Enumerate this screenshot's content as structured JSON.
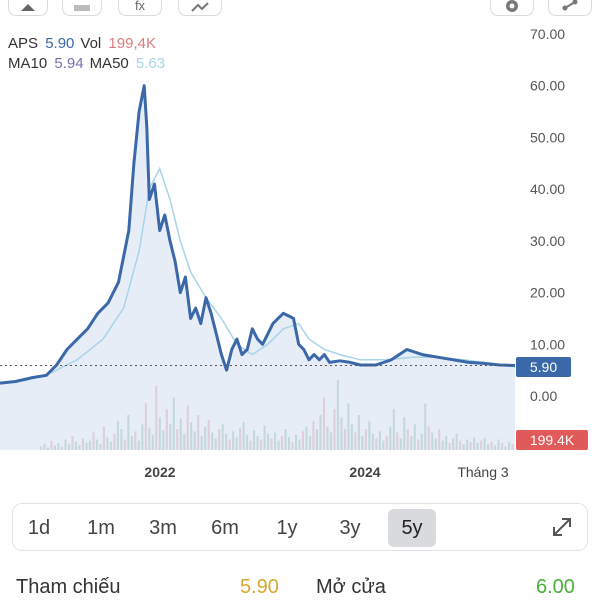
{
  "toolbar": {
    "fx_label": "fx"
  },
  "legend": {
    "symbol": "APS",
    "price": "5.90",
    "vol_label": "Vol",
    "vol": "199,4K",
    "ma10_label": "MA10",
    "ma10": "5.94",
    "ma50_label": "MA50",
    "ma50": "5.63"
  },
  "colors": {
    "price_line": "#3a68a8",
    "price_fill": "#dbe6f4",
    "ma10": "#7b6fb3",
    "ma50": "#a8d4ea",
    "volume_up": "#6fa58d",
    "volume_down": "#e07b7b",
    "price_tag": "#3a68a8",
    "vol_tag": "#e05a5a",
    "open_value": "#4caf3a",
    "ref_value": "#d6a92c"
  },
  "chart_data": {
    "type": "line",
    "x_ticks": [
      "2022",
      "2024",
      "Tháng 3"
    ],
    "y_ticks": [
      "70.00",
      "60.00",
      "50.00",
      "40.00",
      "30.00",
      "20.00",
      "10.00",
      "0.00"
    ],
    "ylim": [
      0,
      70
    ],
    "last_price": "5.90",
    "last_volume": "199.4K",
    "series": [
      {
        "name": "APS",
        "x": [
          0,
          0.03,
          0.06,
          0.09,
          0.11,
          0.13,
          0.15,
          0.17,
          0.19,
          0.21,
          0.23,
          0.25,
          0.26,
          0.27,
          0.28,
          0.285,
          0.29,
          0.3,
          0.31,
          0.32,
          0.33,
          0.34,
          0.35,
          0.36,
          0.37,
          0.38,
          0.39,
          0.4,
          0.41,
          0.42,
          0.43,
          0.44,
          0.45,
          0.46,
          0.47,
          0.48,
          0.49,
          0.5,
          0.51,
          0.52,
          0.53,
          0.55,
          0.57,
          0.58,
          0.59,
          0.6,
          0.61,
          0.62,
          0.63,
          0.64,
          0.66,
          0.68,
          0.7,
          0.73,
          0.76,
          0.79,
          0.82,
          0.85,
          0.88,
          0.91,
          0.94,
          0.97,
          1.0
        ],
        "y": [
          2.5,
          2.8,
          3.5,
          4,
          6,
          9,
          11,
          13,
          16,
          18,
          22,
          32,
          45,
          55,
          60,
          52,
          38,
          41,
          32,
          35,
          30,
          26,
          20,
          23,
          15,
          17,
          14,
          19,
          16,
          12,
          8,
          5,
          9,
          11,
          8,
          9,
          13,
          11,
          10,
          12,
          14,
          16,
          15,
          10,
          9,
          7,
          8,
          7,
          8,
          6.5,
          6.8,
          6.5,
          6,
          6,
          7,
          9,
          8,
          7.5,
          7,
          6.5,
          6.3,
          6,
          5.9
        ]
      },
      {
        "name": "MA50",
        "x": [
          0,
          0.05,
          0.1,
          0.15,
          0.2,
          0.24,
          0.27,
          0.29,
          0.31,
          0.33,
          0.35,
          0.37,
          0.4,
          0.43,
          0.46,
          0.49,
          0.52,
          0.55,
          0.58,
          0.6,
          0.63,
          0.66,
          0.7,
          0.75,
          0.8,
          0.85,
          0.9,
          0.95,
          1.0
        ],
        "y": [
          2.5,
          3,
          4.5,
          7,
          11,
          17,
          28,
          40,
          44,
          38,
          30,
          24,
          19,
          15,
          10,
          8,
          10,
          13,
          14,
          11,
          9,
          8,
          7,
          7,
          7.5,
          7.5,
          7,
          6.3,
          5.63
        ]
      }
    ],
    "volume": [
      3,
      5,
      2,
      8,
      4,
      6,
      3,
      9,
      5,
      12,
      7,
      4,
      10,
      6,
      8,
      15,
      9,
      5,
      20,
      11,
      7,
      14,
      25,
      18,
      9,
      30,
      12,
      16,
      8,
      22,
      40,
      19,
      13,
      55,
      28,
      17,
      35,
      22,
      45,
      18,
      27,
      14,
      38,
      24,
      16,
      30,
      12,
      20,
      26,
      15,
      10,
      18,
      22,
      14,
      9,
      16,
      11,
      19,
      24,
      13,
      8,
      17,
      12,
      9,
      21,
      14,
      10,
      15,
      8,
      12,
      18,
      11,
      7,
      13,
      9,
      16,
      20,
      12,
      25,
      18,
      30,
      45,
      20,
      15,
      35,
      60,
      28,
      18,
      40,
      22,
      15,
      30,
      12,
      18,
      25,
      14,
      10,
      16,
      8,
      12,
      20,
      35,
      15,
      10,
      28,
      18,
      12,
      22,
      9,
      14,
      40,
      20,
      15,
      10,
      18,
      8,
      12,
      6,
      10,
      14,
      8,
      5,
      9,
      7,
      11,
      6,
      8,
      10,
      5,
      7,
      4,
      9,
      6,
      3,
      7,
      5
    ]
  },
  "range": {
    "items": [
      "1d",
      "1m",
      "3m",
      "6m",
      "1y",
      "3y",
      "5y"
    ],
    "active": "5y"
  },
  "stats": {
    "ref_label": "Tham chiếu",
    "ref_value": "5.90",
    "open_label": "Mở cửa",
    "open_value": "6.00"
  }
}
